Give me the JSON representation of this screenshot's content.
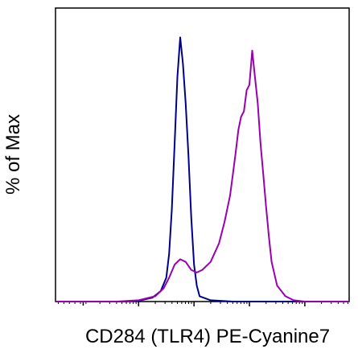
{
  "chart_data": {
    "type": "line",
    "title": "",
    "xlabel": "CD284 (TLR4) PE-Cyanine7",
    "ylabel": "% of Max",
    "x_scale": "biexponential (log decades)",
    "x_major_tick_labels": [],
    "y_tick_labels": [],
    "ylim": [
      0,
      100
    ],
    "grid": false,
    "legend": "none",
    "series": [
      {
        "color": "#00008b",
        "x": [
          -0.5,
          0.2,
          0.7,
          1.0,
          1.25,
          1.4,
          1.5,
          1.55,
          1.6,
          1.65,
          1.7,
          1.75,
          1.8,
          1.85,
          1.9,
          1.95,
          2.0,
          2.05,
          2.1,
          2.3,
          2.7,
          3.3,
          4.8
        ],
        "y": [
          0,
          0,
          0,
          0.3,
          1.5,
          4,
          9,
          18,
          35,
          60,
          85,
          100,
          90,
          75,
          55,
          32,
          14,
          6,
          2,
          0.5,
          0,
          0,
          0
        ]
      },
      {
        "color": "#9900b0",
        "x": [
          -0.5,
          0.6,
          1.0,
          1.3,
          1.45,
          1.55,
          1.65,
          1.75,
          1.85,
          1.95,
          2.05,
          2.15,
          2.3,
          2.45,
          2.55,
          2.65,
          2.7,
          2.75,
          2.8,
          2.85,
          2.9,
          2.95,
          3.0,
          3.05,
          3.1,
          3.15,
          3.2,
          3.25,
          3.3,
          3.35,
          3.4,
          3.5,
          3.65,
          3.8,
          4.0,
          4.8
        ],
        "y": [
          0,
          0,
          0.5,
          2,
          5,
          9,
          14,
          16,
          15,
          12,
          11,
          12,
          15,
          22,
          30,
          40,
          48,
          56,
          65,
          70,
          72,
          80,
          82,
          95,
          85,
          75,
          60,
          48,
          36,
          25,
          15,
          6,
          2,
          0.5,
          0,
          0
        ]
      }
    ]
  }
}
